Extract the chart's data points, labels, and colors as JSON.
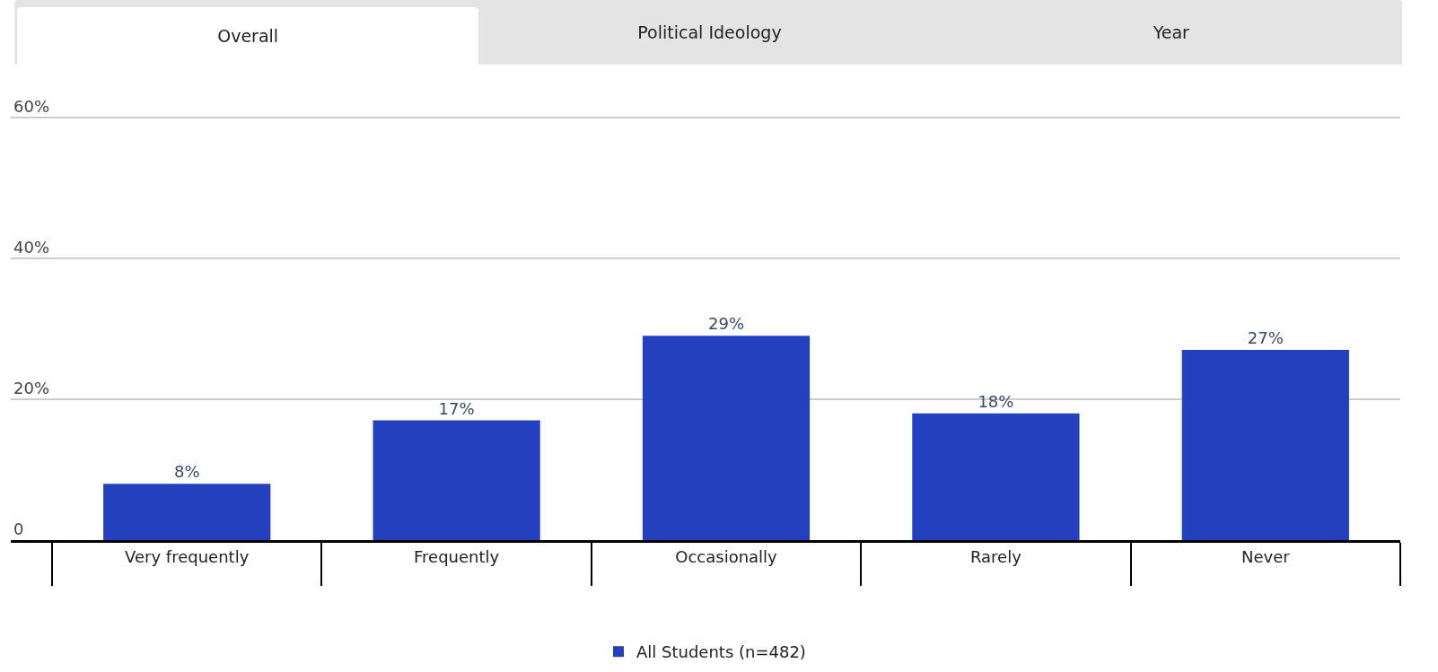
{
  "chart_data": {
    "type": "bar",
    "annotations": [
      "Overall",
      "Political Ideology",
      "Year"
    ],
    "categories": [
      "Very frequently",
      "Frequently",
      "Occasionally",
      "Rarely",
      "Never"
    ],
    "series": [
      {
        "name": "All Students (n=482)",
        "color": "#2340bf",
        "values": [
          8,
          17,
          29,
          18,
          27
        ],
        "value_labels": [
          "8%",
          "17%",
          "29%",
          "18%",
          "27%"
        ]
      }
    ],
    "ylim": [
      0,
      67.5
    ],
    "yticks": [
      {
        "value": 0,
        "label": "0"
      },
      {
        "value": 20,
        "label": "20%"
      },
      {
        "value": 40,
        "label": "40%"
      },
      {
        "value": 60,
        "label": "60%"
      }
    ],
    "grid": "y",
    "legend": "bottom"
  }
}
